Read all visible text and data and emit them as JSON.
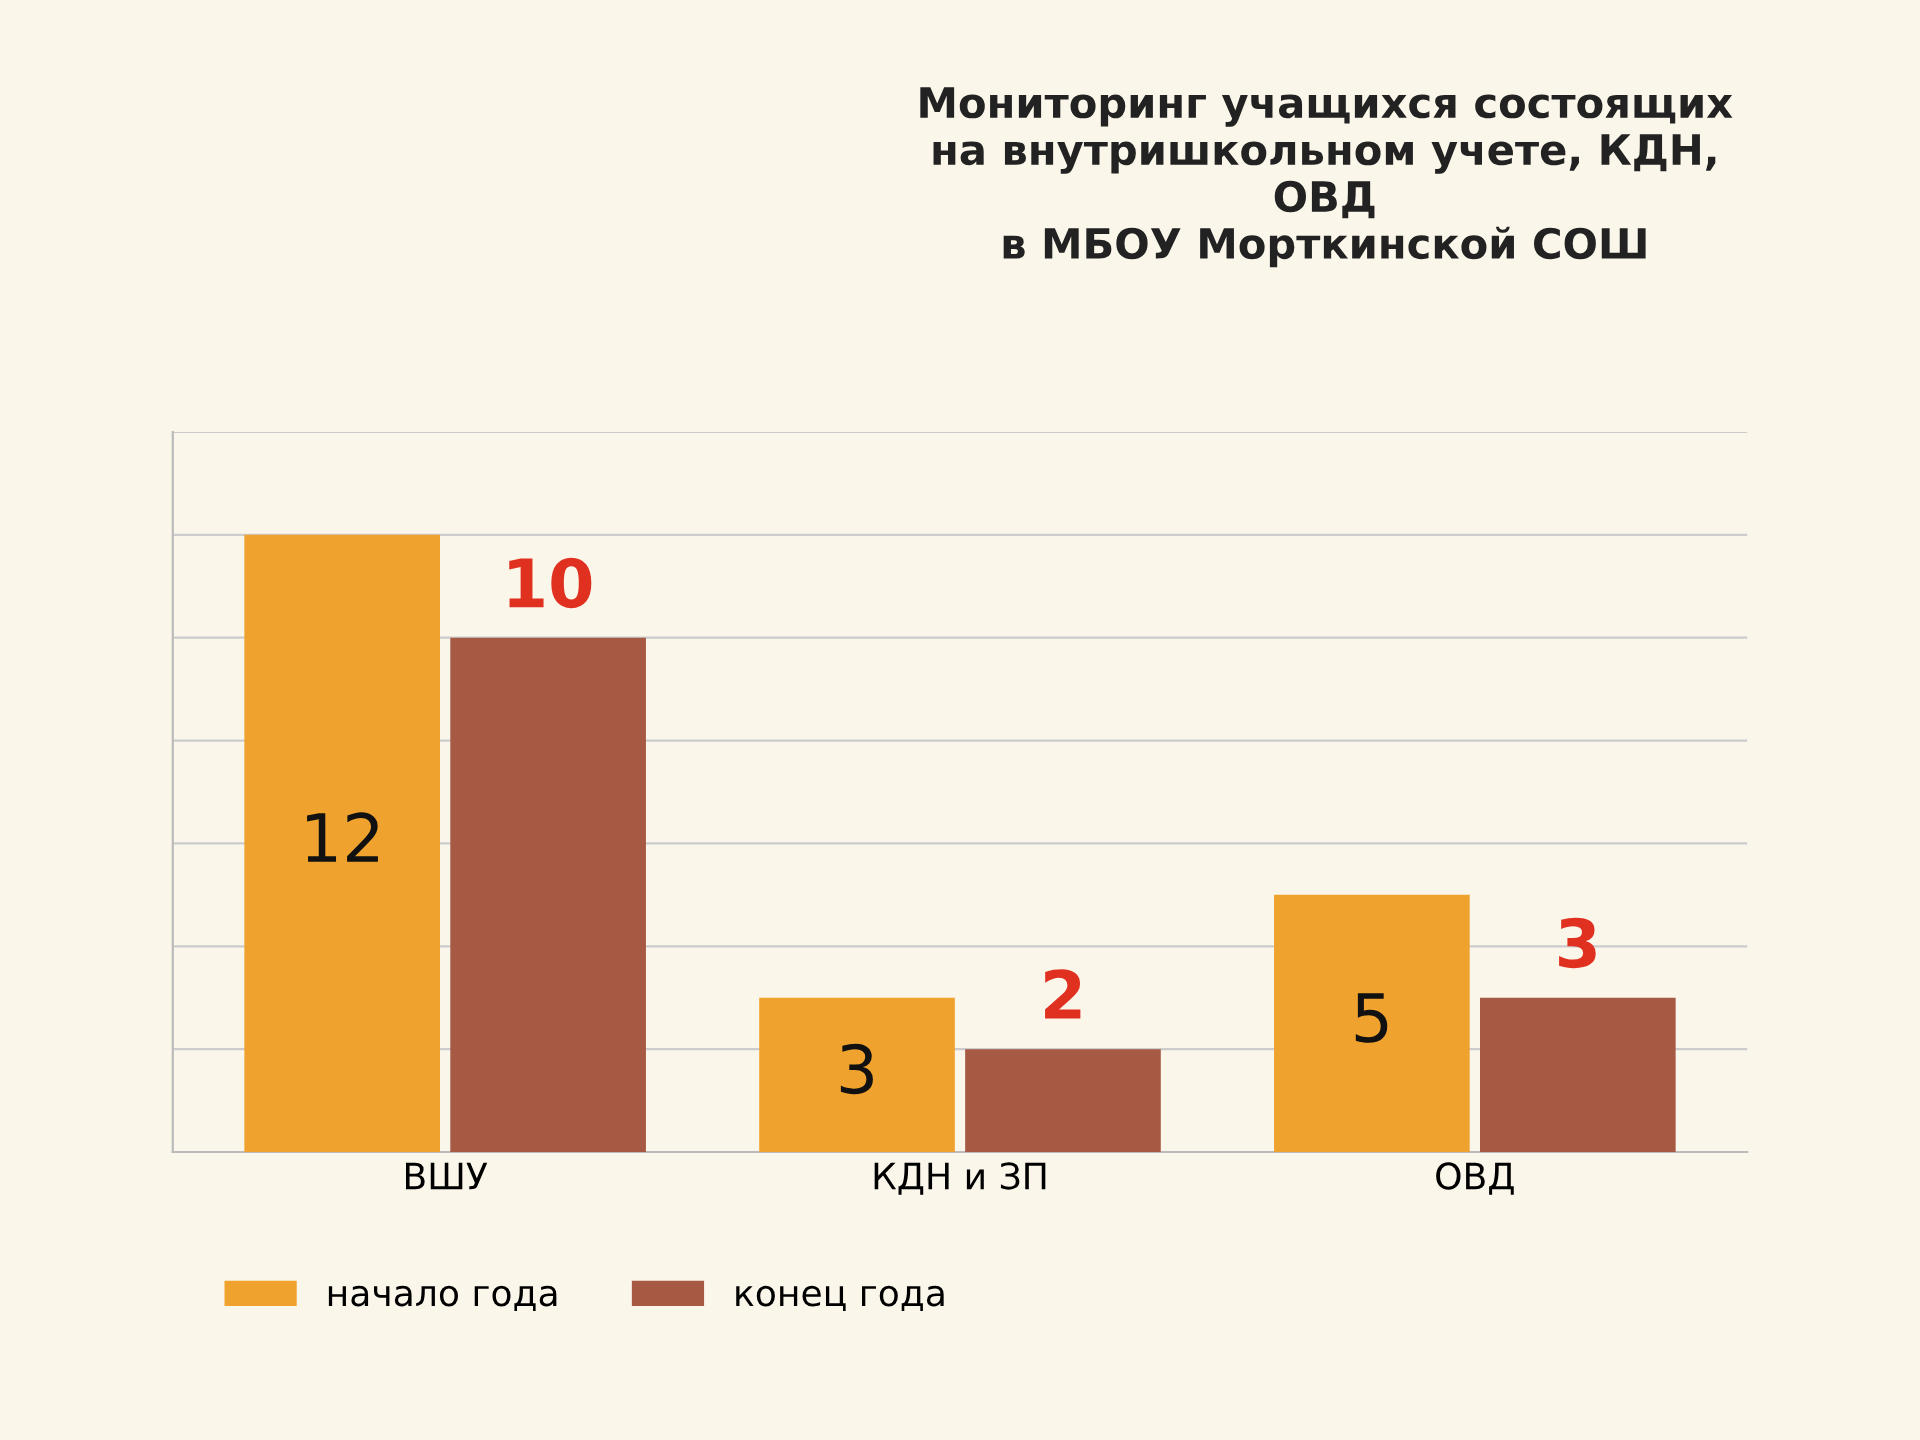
{
  "chart_data": {
    "type": "bar",
    "title": "Мониторинг учащихся состоящих\nна внутришкольном учете, КДН,\nОВД\nв МБОУ Морткинской СОШ",
    "categories": [
      "ВШУ",
      "КДН и ЗП",
      "ОВД"
    ],
    "series": [
      {
        "name": "начало года",
        "color": "#f0a22e",
        "values": [
          12,
          3,
          5
        ]
      },
      {
        "name": "конец года",
        "color": "#a65a44",
        "values": [
          10,
          2,
          3
        ]
      }
    ],
    "ylim": [
      0,
      14
    ],
    "yticks": [
      {
        "value": 0,
        "label": null
      },
      {
        "value": 2,
        "label": null
      },
      {
        "value": 4,
        "label": null
      },
      {
        "value": 6,
        "label": null
      },
      {
        "value": 8,
        "label": null
      },
      {
        "value": 10,
        "label": null
      },
      {
        "value": 12,
        "label": null
      },
      {
        "value": 14,
        "label": null
      }
    ],
    "grid": "y",
    "legend": "bottom left",
    "data_labels": true,
    "tick_labels": "x"
  }
}
